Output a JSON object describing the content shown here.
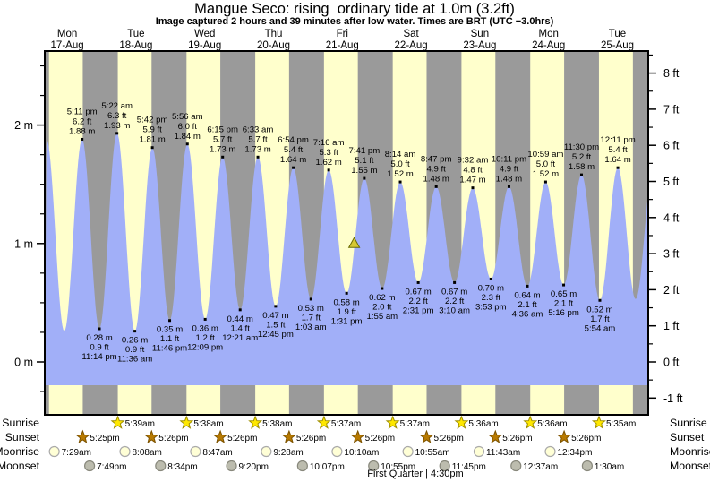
{
  "title": "Mangue Seco: rising  ordinary tide at 1.0m (3.2ft)",
  "subtitle": "Image captured 2 hours and 39 minutes after low water. Times are BRT (UTC −3.0hrs)",
  "days": [
    {
      "name": "Mon",
      "date": "17-Aug"
    },
    {
      "name": "Tue",
      "date": "18-Aug"
    },
    {
      "name": "Wed",
      "date": "19-Aug"
    },
    {
      "name": "Thu",
      "date": "20-Aug"
    },
    {
      "name": "Fri",
      "date": "21-Aug"
    },
    {
      "name": "Sat",
      "date": "22-Aug"
    },
    {
      "name": "Sun",
      "date": "23-Aug"
    },
    {
      "name": "Mon",
      "date": "24-Aug"
    },
    {
      "name": "Tue",
      "date": "25-Aug"
    }
  ],
  "chart_data": {
    "type": "area",
    "title": "Mangue Seco: rising ordinary tide at 1.0m (3.2ft)",
    "y_axis_left": {
      "unit": "m",
      "major": [
        {
          "v": 0,
          "label": "0 m"
        },
        {
          "v": 1,
          "label": "1 m"
        },
        {
          "v": 2,
          "label": "2 m"
        }
      ]
    },
    "y_axis_right": {
      "unit": "ft",
      "major": [
        {
          "v": -1,
          "label": "-1 ft"
        },
        {
          "v": 0,
          "label": "0 ft"
        },
        {
          "v": 1,
          "label": "1 ft"
        },
        {
          "v": 2,
          "label": "2 ft"
        },
        {
          "v": 3,
          "label": "3 ft"
        },
        {
          "v": 4,
          "label": "4 ft"
        },
        {
          "v": 5,
          "label": "5 ft"
        },
        {
          "v": 6,
          "label": "6 ft"
        },
        {
          "v": 7,
          "label": "7 ft"
        },
        {
          "v": 8,
          "label": "8 ft"
        }
      ]
    },
    "tide_events": [
      {
        "d": 0,
        "type": "high",
        "time": "5:11 pm",
        "ft": "6.2 ft",
        "m": "1.88 m"
      },
      {
        "d": 0,
        "type": "low",
        "time": "11:14 pm",
        "ft": "0.9 ft",
        "m": "0.28 m"
      },
      {
        "d": 1,
        "type": "high",
        "time": "5:22 am",
        "ft": "6.3 ft",
        "m": "1.93 m"
      },
      {
        "d": 1,
        "type": "low",
        "time": "11:36 am",
        "ft": "0.9 ft",
        "m": "0.26 m"
      },
      {
        "d": 1,
        "type": "high",
        "time": "5:42 pm",
        "ft": "5.9 ft",
        "m": "1.81 m"
      },
      {
        "d": 1,
        "type": "low",
        "time": "11:46 pm",
        "ft": "1.1 ft",
        "m": "0.35 m"
      },
      {
        "d": 2,
        "type": "high",
        "time": "5:56 am",
        "ft": "6.0 ft",
        "m": "1.84 m"
      },
      {
        "d": 2,
        "type": "low",
        "time": "12:09 pm",
        "ft": "1.2 ft",
        "m": "0.36 m"
      },
      {
        "d": 2,
        "type": "high",
        "time": "6:15 pm",
        "ft": "5.7 ft",
        "m": "1.73 m"
      },
      {
        "d": 3,
        "type": "low",
        "time": "12:21 am",
        "ft": "1.4 ft",
        "m": "0.44 m"
      },
      {
        "d": 3,
        "type": "high",
        "time": "6:33 am",
        "ft": "5.7 ft",
        "m": "1.73 m"
      },
      {
        "d": 3,
        "type": "low",
        "time": "12:45 pm",
        "ft": "1.5 ft",
        "m": "0.47 m"
      },
      {
        "d": 3,
        "type": "high",
        "time": "6:54 pm",
        "ft": "5.4 ft",
        "m": "1.64 m"
      },
      {
        "d": 4,
        "type": "low",
        "time": "1:03 am",
        "ft": "1.7 ft",
        "m": "0.53 m"
      },
      {
        "d": 4,
        "type": "high",
        "time": "7:16 am",
        "ft": "5.3 ft",
        "m": "1.62 m"
      },
      {
        "d": 4,
        "type": "low",
        "time": "1:31 pm",
        "ft": "1.9 ft",
        "m": "0.58 m"
      },
      {
        "d": 4,
        "type": "high",
        "time": "7:41 pm",
        "ft": "5.1 ft",
        "m": "1.55 m"
      },
      {
        "d": 5,
        "type": "low",
        "time": "1:55 am",
        "ft": "2.0 ft",
        "m": "0.62 m"
      },
      {
        "d": 5,
        "type": "high",
        "time": "8:14 am",
        "ft": "5.0 ft",
        "m": "1.52 m"
      },
      {
        "d": 5,
        "type": "low",
        "time": "2:31 pm",
        "ft": "2.2 ft",
        "m": "0.67 m"
      },
      {
        "d": 5,
        "type": "high",
        "time": "8:47 pm",
        "ft": "4.9 ft",
        "m": "1.48 m"
      },
      {
        "d": 6,
        "type": "low",
        "time": "3:10 am",
        "ft": "2.2 ft",
        "m": "0.67 m"
      },
      {
        "d": 6,
        "type": "high",
        "time": "9:32 am",
        "ft": "4.8 ft",
        "m": "1.47 m"
      },
      {
        "d": 6,
        "type": "low",
        "time": "3:53 pm",
        "ft": "2.3 ft",
        "m": "0.70 m"
      },
      {
        "d": 6,
        "type": "high",
        "time": "10:11 pm",
        "ft": "4.9 ft",
        "m": "1.48 m"
      },
      {
        "d": 7,
        "type": "low",
        "time": "4:36 am",
        "ft": "2.1 ft",
        "m": "0.64 m"
      },
      {
        "d": 7,
        "type": "high",
        "time": "10:59 am",
        "ft": "5.0 ft",
        "m": "1.52 m"
      },
      {
        "d": 7,
        "type": "low",
        "time": "5:16 pm",
        "ft": "2.1 ft",
        "m": "0.65 m"
      },
      {
        "d": 7,
        "type": "high",
        "time": "11:30 pm",
        "ft": "5.2 ft",
        "m": "1.58 m"
      },
      {
        "d": 8,
        "type": "low",
        "time": "5:54 am",
        "ft": "1.7 ft",
        "m": "0.52 m"
      },
      {
        "d": 8,
        "type": "high",
        "time": "12:11 pm",
        "ft": "5.4 ft",
        "m": "1.64 m"
      }
    ],
    "current_marker": {
      "d": 4,
      "time": "4:10 pm",
      "height_m": 1.0
    }
  },
  "almanac": {
    "rows": [
      {
        "key": "sunrise",
        "label": "Sunrise",
        "icon": "sunrise-star",
        "events": [
          {
            "d": 1,
            "time": "5:39am"
          },
          {
            "d": 2,
            "time": "5:38am"
          },
          {
            "d": 3,
            "time": "5:38am"
          },
          {
            "d": 4,
            "time": "5:37am"
          },
          {
            "d": 5,
            "time": "5:37am"
          },
          {
            "d": 6,
            "time": "5:36am"
          },
          {
            "d": 7,
            "time": "5:36am"
          },
          {
            "d": 8,
            "time": "5:35am"
          }
        ]
      },
      {
        "key": "sunset",
        "label": "Sunset",
        "icon": "sunset-star",
        "events": [
          {
            "d": 0,
            "time": "5:25pm"
          },
          {
            "d": 1,
            "time": "5:26pm"
          },
          {
            "d": 2,
            "time": "5:26pm"
          },
          {
            "d": 3,
            "time": "5:26pm"
          },
          {
            "d": 4,
            "time": "5:26pm"
          },
          {
            "d": 5,
            "time": "5:26pm"
          },
          {
            "d": 6,
            "time": "5:26pm"
          },
          {
            "d": 7,
            "time": "5:26pm"
          }
        ]
      },
      {
        "key": "moonrise",
        "label": "Moonrise",
        "icon": "moonrise-circle",
        "events": [
          {
            "d": 0,
            "time": "7:29am"
          },
          {
            "d": 1,
            "time": "8:08am"
          },
          {
            "d": 2,
            "time": "8:47am"
          },
          {
            "d": 3,
            "time": "9:28am"
          },
          {
            "d": 4,
            "time": "10:10am"
          },
          {
            "d": 5,
            "time": "10:55am"
          },
          {
            "d": 6,
            "time": "11:43am"
          },
          {
            "d": 7,
            "time": "12:34pm"
          }
        ]
      },
      {
        "key": "moonset",
        "label": "Moonset",
        "icon": "moonset-circle",
        "events": [
          {
            "d": 0,
            "time": "7:49pm"
          },
          {
            "d": 1,
            "time": "8:34pm"
          },
          {
            "d": 2,
            "time": "9:20pm"
          },
          {
            "d": 3,
            "time": "10:07pm"
          },
          {
            "d": 4,
            "time": "10:55pm"
          },
          {
            "d": 5,
            "time": "11:45pm"
          },
          {
            "d": 7,
            "time": "12:37am"
          },
          {
            "d": 8,
            "time": "1:30am"
          }
        ]
      }
    ],
    "moon_phase": "First Quarter | 4:30pm"
  },
  "colors": {
    "day_band": "#ffffcc",
    "night_band": "#9a9a9a",
    "tide_fill": "#a1aff8",
    "date_text": "#fb4242",
    "sunrise_star_fill": "#ffe800",
    "sunrise_star_stroke": "#a09000",
    "sunset_star_fill": "#b87a00",
    "sunset_star_stroke": "#7d5300",
    "moonrise_circle_fill": "#ffffd6",
    "moonrise_circle_stroke": "#aaaaaa",
    "moonset_circle_fill": "#bcbcae",
    "moonset_circle_stroke": "#88887c",
    "marker_fill": "#d6c832",
    "marker_stroke": "#6b6b00"
  }
}
